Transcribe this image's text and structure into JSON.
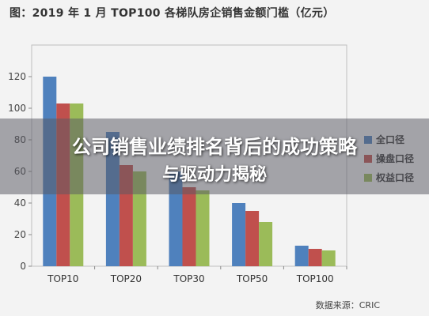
{
  "chart_data": {
    "type": "bar",
    "title": "图：2019 年 1 月 TOP100 各梯队房企销售金额门槛（亿元）",
    "categories": [
      "TOP10",
      "TOP20",
      "TOP30",
      "TOP50",
      "TOP100"
    ],
    "series": [
      {
        "name": "全口径",
        "color": "#4F81BD",
        "values": [
          120,
          85,
          60,
          40,
          13
        ]
      },
      {
        "name": "操盘口径",
        "color": "#C0504D",
        "values": [
          103,
          64,
          50,
          35,
          11
        ]
      },
      {
        "name": "权益口径",
        "color": "#9BBB59",
        "values": [
          103,
          60,
          48,
          28,
          10
        ]
      }
    ],
    "y_ticks": [
      "0",
      "20",
      "40",
      "60",
      "80",
      "100",
      "120"
    ],
    "ylim": [
      0,
      140
    ],
    "grid": false,
    "legend_position": "right"
  },
  "source": "数据来源：CRIC",
  "banner": {
    "line1": "公司销售业绩排名背后的成功策略",
    "line2": "与驱动力揭秘"
  }
}
